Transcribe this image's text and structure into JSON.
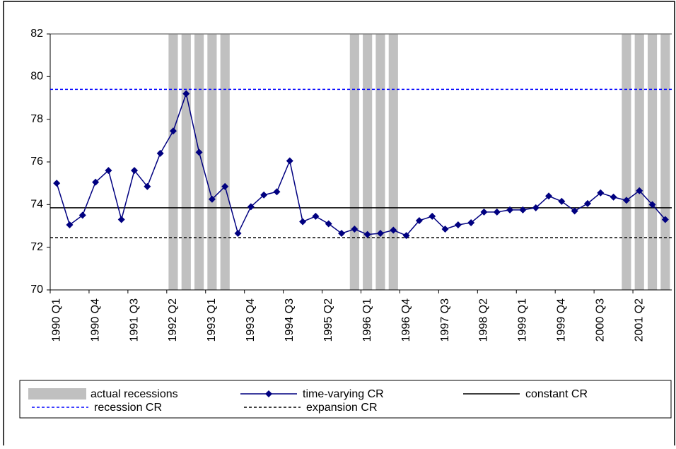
{
  "chart_data": {
    "type": "line",
    "categories": [
      "1990 Q1",
      null,
      null,
      "1990 Q4",
      null,
      null,
      "1991 Q3",
      null,
      null,
      "1992 Q2",
      null,
      null,
      "1993 Q1",
      null,
      null,
      "1993 Q4",
      null,
      null,
      "1994 Q3",
      null,
      null,
      "1995 Q2",
      null,
      null,
      "1996 Q1",
      null,
      null,
      "1996 Q4",
      null,
      null,
      "1997 Q3",
      null,
      null,
      "1998 Q2",
      null,
      null,
      "1999 Q1",
      null,
      null,
      "1999 Q4",
      null,
      null,
      "2000 Q3",
      null,
      null,
      "2001 Q2",
      null,
      null
    ],
    "series": [
      {
        "name": "actual recessions",
        "type": "bar",
        "color": "#c0c0c0",
        "values": [
          null,
          null,
          null,
          null,
          null,
          null,
          null,
          null,
          null,
          82,
          82,
          82,
          82,
          82,
          null,
          null,
          null,
          null,
          null,
          null,
          null,
          null,
          null,
          82,
          82,
          82,
          82,
          null,
          null,
          null,
          null,
          null,
          null,
          null,
          null,
          null,
          null,
          null,
          null,
          null,
          null,
          null,
          null,
          null,
          82,
          82,
          82,
          82
        ]
      },
      {
        "name": "time-varying CR",
        "type": "line",
        "color": "#000080",
        "marker": "diamond",
        "values": [
          75.0,
          73.05,
          73.5,
          75.05,
          75.6,
          73.3,
          75.6,
          74.85,
          76.4,
          77.45,
          79.2,
          76.45,
          74.25,
          74.85,
          72.65,
          73.9,
          74.45,
          74.6,
          76.05,
          73.2,
          73.45,
          73.1,
          72.65,
          72.85,
          72.6,
          72.65,
          72.8,
          72.55,
          73.25,
          73.45,
          72.85,
          73.05,
          73.15,
          73.65,
          73.65,
          73.75,
          73.75,
          73.85,
          74.4,
          74.15,
          73.7,
          74.05,
          74.55,
          74.35,
          74.2,
          74.65,
          74.0,
          73.3
        ]
      },
      {
        "name": "constant CR",
        "type": "hline",
        "color": "#000000",
        "dashed": false,
        "value": 73.85
      },
      {
        "name": "recession CR",
        "type": "hline",
        "color": "#0000ff",
        "dashed": true,
        "value": 79.4
      },
      {
        "name": "expansion CR",
        "type": "hline",
        "color": "#000000",
        "dashed": true,
        "value": 72.45
      }
    ],
    "ylim": [
      70,
      82
    ],
    "yticks": [
      70,
      72,
      74,
      76,
      78,
      80,
      82
    ],
    "legend": "bottom"
  }
}
